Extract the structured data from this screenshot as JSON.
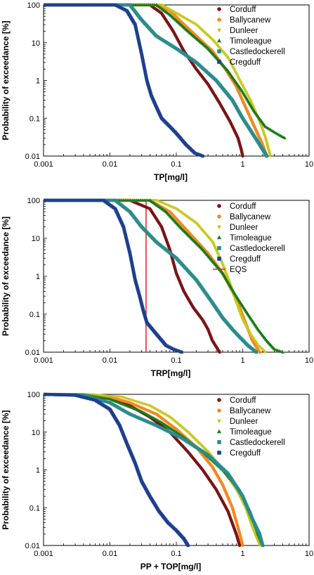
{
  "figure": {
    "description_free": true,
    "colors": {
      "Corduff": "#7a1416",
      "Ballycanew": "#f28a1e",
      "Dunleer": "#c8c820",
      "Timoleague": "#197a19",
      "Castledockerell": "#2a8c8c",
      "Cregduff": "#1f3f8f",
      "EQS": "#e02020"
    },
    "markers": {
      "Corduff": "circle",
      "Ballycanew": "circle",
      "Dunleer": "triangle-down",
      "Timoleague": "triangle-up",
      "Castledockerell": "square",
      "Cregduff": "square",
      "EQS": "line"
    }
  },
  "chart_data": [
    {
      "type": "line",
      "xlabel": "TP[mg/l]",
      "ylabel": "Probability of exceedance [%]",
      "xscale": "log",
      "yscale": "log",
      "xlim": [
        0.001,
        10
      ],
      "ylim": [
        0.01,
        100
      ],
      "xticks": [
        "0.001",
        "0.01",
        "0.1",
        "1",
        "10"
      ],
      "yticks": [
        "0.01",
        "0.1",
        "1",
        "10",
        "100"
      ],
      "legend_position": "top-right",
      "legend": [
        "Corduff",
        "Ballycanew",
        "Dunleer",
        "Timoleague",
        "Castledockerell",
        "Cregduff"
      ],
      "series": [
        {
          "name": "Corduff",
          "x": [
            0.001,
            0.04,
            0.06,
            0.09,
            0.13,
            0.2,
            0.3,
            0.45,
            0.65,
            0.85,
            0.95,
            1.0
          ],
          "y": [
            100,
            100,
            60,
            20,
            6,
            2,
            0.8,
            0.25,
            0.08,
            0.03,
            0.015,
            0.01
          ]
        },
        {
          "name": "Ballycanew",
          "x": [
            0.001,
            0.05,
            0.08,
            0.12,
            0.2,
            0.35,
            0.55,
            0.8,
            1.1,
            1.5,
            2.0,
            2.3
          ],
          "y": [
            100,
            100,
            70,
            35,
            15,
            6,
            2,
            0.7,
            0.2,
            0.06,
            0.02,
            0.01
          ]
        },
        {
          "name": "Dunleer",
          "x": [
            0.001,
            0.06,
            0.1,
            0.2,
            0.35,
            0.6,
            0.9,
            1.3,
            1.8,
            2.2,
            2.6
          ],
          "y": [
            100,
            100,
            60,
            30,
            12,
            4,
            1,
            0.3,
            0.08,
            0.03,
            0.01
          ]
        },
        {
          "name": "Timoleague",
          "x": [
            0.001,
            0.05,
            0.08,
            0.15,
            0.3,
            0.6,
            1.0,
            1.5,
            2.2,
            3.2,
            4.3
          ],
          "y": [
            100,
            100,
            55,
            20,
            7,
            1.8,
            0.5,
            0.15,
            0.06,
            0.04,
            0.03
          ]
        },
        {
          "name": "Castledockerell",
          "x": [
            0.001,
            0.02,
            0.03,
            0.05,
            0.1,
            0.2,
            0.4,
            0.7,
            1.0,
            1.4,
            1.8,
            2.3
          ],
          "y": [
            100,
            100,
            40,
            15,
            7,
            3,
            1,
            0.3,
            0.1,
            0.04,
            0.02,
            0.01
          ]
        },
        {
          "name": "Cregduff",
          "x": [
            0.001,
            0.012,
            0.018,
            0.024,
            0.03,
            0.036,
            0.042,
            0.05,
            0.06,
            0.08,
            0.1,
            0.14,
            0.19,
            0.25
          ],
          "y": [
            100,
            100,
            70,
            30,
            5,
            1,
            0.4,
            0.2,
            0.1,
            0.06,
            0.04,
            0.02,
            0.012,
            0.01
          ]
        }
      ]
    },
    {
      "type": "line",
      "xlabel": "TRP[mg/l]",
      "ylabel": "Probability of exceedance [%]",
      "xscale": "log",
      "yscale": "log",
      "xlim": [
        0.001,
        10
      ],
      "ylim": [
        0.01,
        100
      ],
      "xticks": [
        "0.001",
        "0.01",
        "0.1",
        "1",
        "10"
      ],
      "yticks": [
        "0.01",
        "0.1",
        "1",
        "10",
        "100"
      ],
      "legend_position": "top-right",
      "legend": [
        "Corduff",
        "Ballycanew",
        "Dunleer",
        "Timoleague",
        "Castledockerell",
        "Cregduff",
        "EQS"
      ],
      "eqs_x": 0.035,
      "series": [
        {
          "name": "Corduff",
          "x": [
            0.001,
            0.02,
            0.04,
            0.06,
            0.08,
            0.1,
            0.13,
            0.18,
            0.25,
            0.3,
            0.35,
            0.45
          ],
          "y": [
            100,
            100,
            60,
            20,
            5,
            1.2,
            0.4,
            0.15,
            0.07,
            0.04,
            0.02,
            0.01
          ]
        },
        {
          "name": "Ballycanew",
          "x": [
            0.001,
            0.04,
            0.08,
            0.15,
            0.3,
            0.5,
            0.7,
            0.9,
            1.1,
            1.4,
            1.8
          ],
          "y": [
            100,
            100,
            50,
            15,
            4,
            1.2,
            0.4,
            0.15,
            0.06,
            0.02,
            0.01
          ]
        },
        {
          "name": "Dunleer",
          "x": [
            0.001,
            0.05,
            0.1,
            0.2,
            0.35,
            0.5,
            0.65,
            0.8,
            1.0,
            1.3,
            1.7,
            2.2
          ],
          "y": [
            100,
            100,
            60,
            25,
            8,
            2,
            0.6,
            0.2,
            0.07,
            0.03,
            0.015,
            0.01
          ]
        },
        {
          "name": "Timoleague",
          "x": [
            0.001,
            0.04,
            0.07,
            0.12,
            0.25,
            0.5,
            0.8,
            1.2,
            1.7,
            2.3,
            3.0,
            4.0
          ],
          "y": [
            100,
            100,
            50,
            18,
            5,
            1.2,
            0.3,
            0.1,
            0.04,
            0.02,
            0.012,
            0.01
          ]
        },
        {
          "name": "Castledockerell",
          "x": [
            0.001,
            0.012,
            0.02,
            0.03,
            0.05,
            0.1,
            0.2,
            0.35,
            0.5,
            0.7,
            0.9,
            1.2,
            1.6
          ],
          "y": [
            100,
            100,
            50,
            20,
            8,
            3,
            0.8,
            0.2,
            0.08,
            0.04,
            0.025,
            0.015,
            0.01
          ]
        },
        {
          "name": "Cregduff",
          "x": [
            0.001,
            0.008,
            0.012,
            0.016,
            0.02,
            0.024,
            0.028,
            0.032,
            0.036,
            0.05,
            0.07,
            0.09,
            0.12
          ],
          "y": [
            100,
            100,
            60,
            20,
            4,
            0.8,
            0.3,
            0.12,
            0.06,
            0.03,
            0.015,
            0.012,
            0.01
          ]
        }
      ]
    },
    {
      "type": "line",
      "xlabel": "PP + TOP[mg/l]",
      "ylabel": "Probability of exceedance [%]",
      "xscale": "log",
      "yscale": "log",
      "xlim": [
        0.001,
        10
      ],
      "ylim": [
        0.01,
        100
      ],
      "xticks": [
        "0.001",
        "0.01",
        "0.1",
        "1",
        "10"
      ],
      "yticks": [
        "0.01",
        "0.1",
        "1",
        "10",
        "100"
      ],
      "legend_position": "top-right",
      "legend": [
        "Corduff",
        "Ballycanew",
        "Dunleer",
        "Timoleague",
        "Castledockerell",
        "Cregduff"
      ],
      "series": [
        {
          "name": "Corduff",
          "x": [
            0.001,
            0.004,
            0.01,
            0.02,
            0.04,
            0.08,
            0.15,
            0.25,
            0.4,
            0.6,
            0.8,
            0.9
          ],
          "y": [
            100,
            98,
            80,
            50,
            25,
            10,
            3,
            1,
            0.3,
            0.08,
            0.02,
            0.01
          ]
        },
        {
          "name": "Ballycanew",
          "x": [
            0.001,
            0.004,
            0.01,
            0.02,
            0.05,
            0.1,
            0.2,
            0.35,
            0.5,
            0.7,
            0.85,
            1.0
          ],
          "y": [
            100,
            98,
            85,
            60,
            30,
            12,
            4,
            1.2,
            0.4,
            0.1,
            0.03,
            0.01
          ]
        },
        {
          "name": "Dunleer",
          "x": [
            0.001,
            0.005,
            0.015,
            0.04,
            0.08,
            0.15,
            0.3,
            0.5,
            0.8,
            1.1,
            1.4,
            1.8
          ],
          "y": [
            100,
            99,
            85,
            50,
            25,
            10,
            3,
            1,
            0.3,
            0.1,
            0.03,
            0.01
          ]
        },
        {
          "name": "Timoleague",
          "x": [
            0.001,
            0.004,
            0.01,
            0.03,
            0.06,
            0.12,
            0.25,
            0.5,
            0.9,
            1.3,
            1.7,
            2.0
          ],
          "y": [
            100,
            98,
            75,
            35,
            18,
            8,
            3,
            1,
            0.3,
            0.08,
            0.02,
            0.01
          ]
        },
        {
          "name": "Castledockerell",
          "x": [
            0.001,
            0.004,
            0.01,
            0.02,
            0.05,
            0.12,
            0.3,
            0.6,
            1.0,
            1.4,
            1.8,
            2.0
          ],
          "y": [
            100,
            95,
            60,
            30,
            15,
            7,
            2.5,
            0.8,
            0.2,
            0.05,
            0.02,
            0.01
          ]
        },
        {
          "name": "Cregduff",
          "x": [
            0.001,
            0.003,
            0.006,
            0.01,
            0.014,
            0.018,
            0.024,
            0.03,
            0.04,
            0.055,
            0.075,
            0.1,
            0.13,
            0.15
          ],
          "y": [
            100,
            95,
            70,
            40,
            15,
            5,
            1.5,
            0.5,
            0.2,
            0.08,
            0.04,
            0.025,
            0.015,
            0.01
          ]
        }
      ]
    }
  ]
}
